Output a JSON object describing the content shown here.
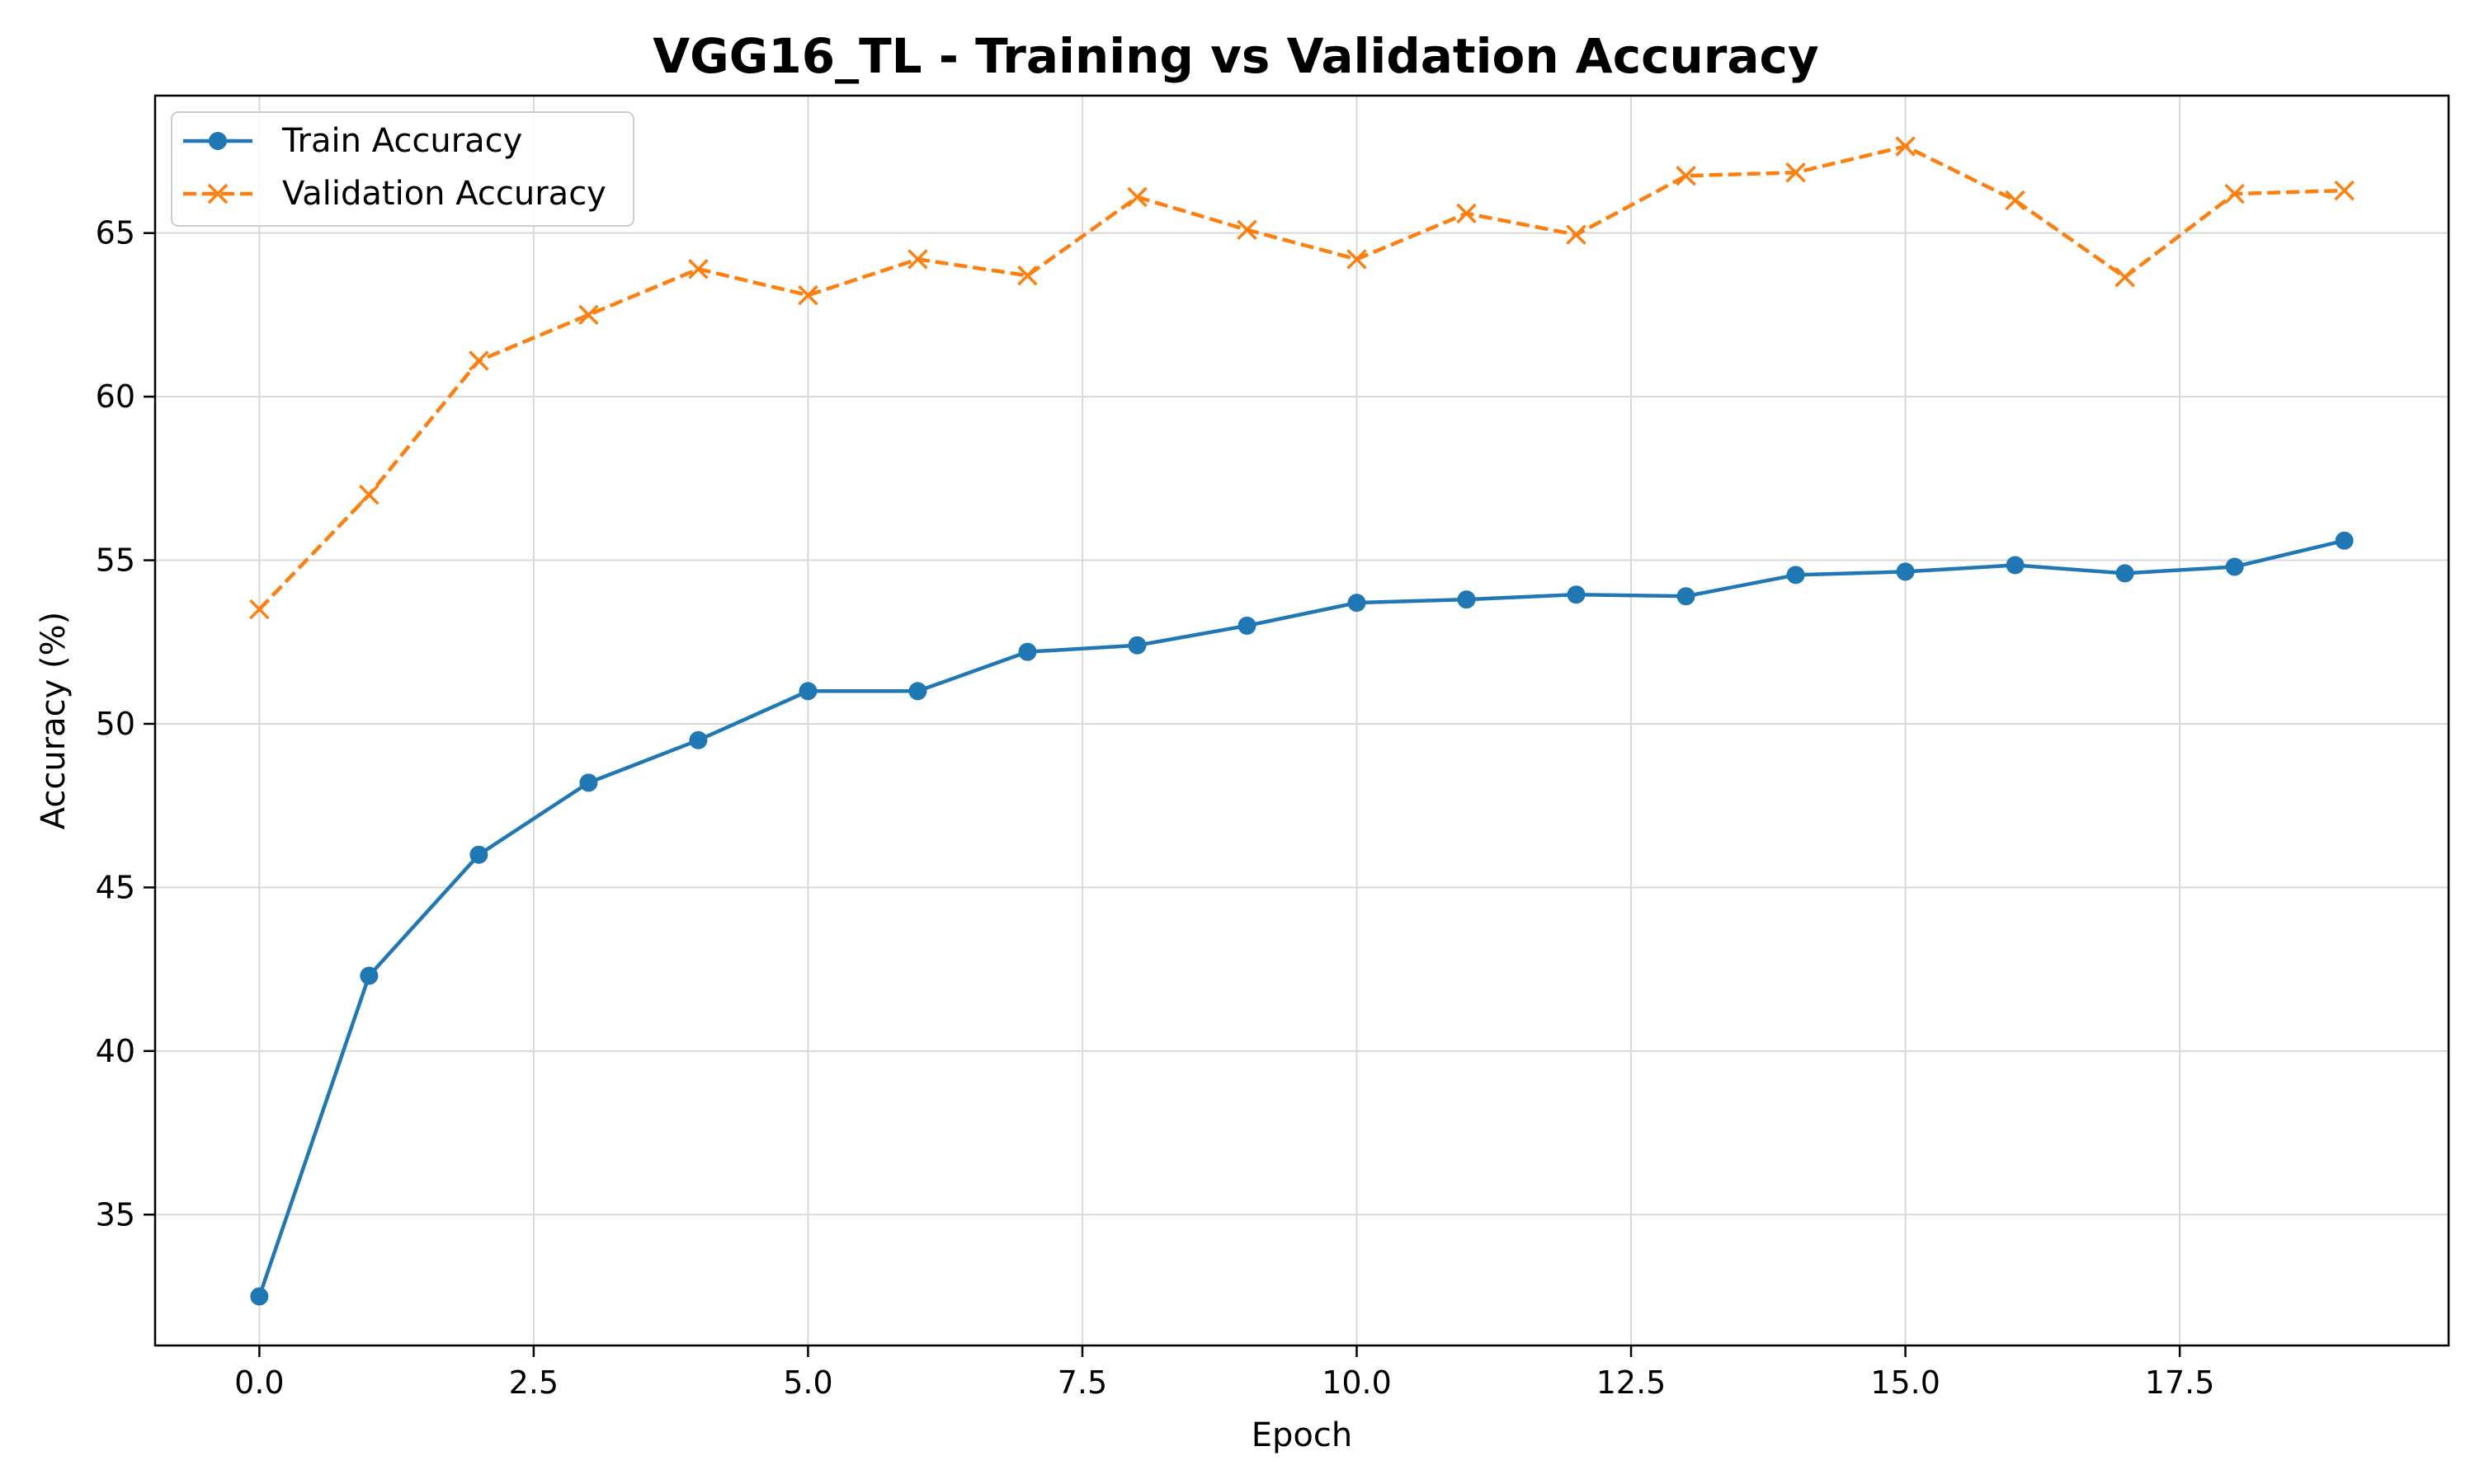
{
  "chart_data": {
    "type": "line",
    "title": "VGG16_TL - Training vs Validation Accuracy",
    "xlabel": "Epoch",
    "ylabel": "Accuracy (%)",
    "xlim": [
      -0.95,
      19.95
    ],
    "ylim": [
      31.0,
      69.2
    ],
    "x_ticks": [
      0.0,
      2.5,
      5.0,
      7.5,
      10.0,
      12.5,
      15.0,
      17.5
    ],
    "x_tick_labels": [
      "0.0",
      "2.5",
      "5.0",
      "7.5",
      "10.0",
      "12.5",
      "15.0",
      "17.5"
    ],
    "y_ticks": [
      35,
      40,
      45,
      50,
      55,
      60,
      65
    ],
    "y_tick_labels": [
      "35",
      "40",
      "45",
      "50",
      "55",
      "60",
      "65"
    ],
    "grid": true,
    "legend_position": "top-left",
    "x": [
      0,
      1,
      2,
      3,
      4,
      5,
      6,
      7,
      8,
      9,
      10,
      11,
      12,
      13,
      14,
      15,
      16,
      17,
      18,
      19
    ],
    "series": [
      {
        "name": "Train Accuracy",
        "color": "#1f77b4",
        "line_style": "solid",
        "marker": "circle",
        "values": [
          32.5,
          42.3,
          46.0,
          48.2,
          49.5,
          51.0,
          51.0,
          52.2,
          52.4,
          53.0,
          53.7,
          53.8,
          53.95,
          53.9,
          54.55,
          54.65,
          54.85,
          54.6,
          54.8,
          55.6
        ]
      },
      {
        "name": "Validation Accuracy",
        "color": "#ff7f0e",
        "line_style": "dashed",
        "marker": "x",
        "values": [
          53.5,
          57.0,
          61.1,
          62.5,
          63.9,
          63.1,
          64.2,
          63.7,
          66.1,
          65.1,
          64.2,
          65.6,
          64.95,
          66.75,
          66.85,
          67.65,
          66.0,
          63.65,
          66.2,
          66.3
        ]
      }
    ]
  }
}
